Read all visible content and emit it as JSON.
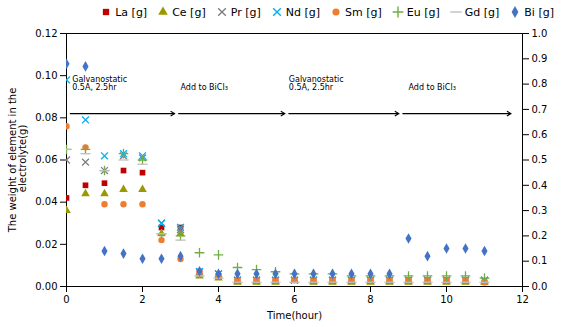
{
  "chart_data": {
    "type": "scatter",
    "xlabel": "Time(hour)",
    "ylabel": "The weight of element in the\n electrolyte(g)",
    "xlim": [
      0,
      12
    ],
    "xticks": [
      0,
      2,
      4,
      6,
      8,
      10,
      12
    ],
    "ylim": [
      0,
      0.12
    ],
    "yticks": [
      {
        "value": 0,
        "label": "0.00"
      },
      {
        "value": 0.02,
        "label": "0.02"
      },
      {
        "value": 0.04,
        "label": "0.04"
      },
      {
        "value": 0.06,
        "label": "0.06"
      },
      {
        "value": 0.08,
        "label": "0.08"
      },
      {
        "value": 0.1,
        "label": "0.10"
      },
      {
        "value": 0.12,
        "label": "0.12"
      }
    ],
    "y2lim": [
      0,
      1
    ],
    "y2ticks": [
      {
        "value": 0,
        "label": "0.0"
      },
      {
        "value": 0.1,
        "label": "0.1"
      },
      {
        "value": 0.2,
        "label": "0.2"
      },
      {
        "value": 0.3,
        "label": "0.3"
      },
      {
        "value": 0.4,
        "label": "0.4"
      },
      {
        "value": 0.5,
        "label": "0.5"
      },
      {
        "value": 0.6,
        "label": "0.6"
      },
      {
        "value": 0.7,
        "label": "0.7"
      },
      {
        "value": 0.8,
        "label": "0.8"
      },
      {
        "value": 0.9,
        "label": "0.9"
      },
      {
        "value": 1.0,
        "label": "1.0"
      }
    ],
    "grid": false,
    "legend": "upper right",
    "annotations": [
      {
        "text": "Galvanostatic\n0.5A, 2.5hr",
        "x": 0.15,
        "y": 0.093
      },
      {
        "text": "Add to BiCl₃",
        "x": 3.0,
        "y": 0.093
      },
      {
        "text": "Galvanostatic\n0.5A, 2.5hr",
        "x": 5.85,
        "y": 0.093
      },
      {
        "text": "Add to BiCl₃",
        "x": 9.0,
        "y": 0.093
      }
    ],
    "arrows": [
      {
        "x_start": 0.1,
        "x_end": 2.85,
        "y": 0.082
      },
      {
        "x_start": 2.95,
        "x_end": 5.75,
        "y": 0.082
      },
      {
        "x_start": 5.85,
        "x_end": 8.75,
        "y": 0.082
      },
      {
        "x_start": 8.85,
        "x_end": 11.7,
        "y": 0.082
      }
    ],
    "series": [
      {
        "name": "La [g]",
        "color": "#c00000",
        "marker": "square",
        "x": [
          0,
          0.5,
          1,
          1.5,
          2,
          2.5,
          3,
          3.5,
          4,
          4.5,
          5,
          5.5,
          6,
          6.5,
          7,
          7.5,
          8,
          8.5,
          9,
          9.5,
          10,
          10.5,
          11
        ],
        "values": [
          0.042,
          0.048,
          0.049,
          0.055,
          0.054,
          0.028,
          0.028,
          0.007,
          0.005,
          0.003,
          0.003,
          0.003,
          0.003,
          0.003,
          0.003,
          0.003,
          0.003,
          0.003,
          0.003,
          0.003,
          0.003,
          0.003,
          0.002
        ]
      },
      {
        "name": "Ce [g]",
        "color": "#9a9a00",
        "marker": "triangle",
        "x": [
          0,
          0.5,
          1,
          1.5,
          2,
          2.5,
          3,
          3.5,
          4,
          4.5,
          5,
          5.5,
          6,
          6.5,
          7,
          7.5,
          8,
          8.5,
          9,
          9.5,
          10,
          10.5,
          11
        ],
        "values": [
          0.036,
          0.044,
          0.044,
          0.046,
          0.046,
          0.025,
          0.025,
          0.005,
          0.004,
          0.002,
          0.002,
          0.002,
          0.003,
          0.002,
          0.002,
          0.002,
          0.002,
          0.002,
          0.002,
          0.002,
          0.002,
          0.002,
          0.002
        ]
      },
      {
        "name": "Pr [g]",
        "color": "#808080",
        "marker": "times",
        "x": [
          0,
          0.5,
          1,
          1.5,
          2,
          2.5,
          3,
          3.5,
          4,
          4.5,
          5,
          5.5,
          6,
          6.5,
          7,
          7.5,
          8,
          8.5,
          9,
          9.5,
          10,
          10.5,
          11
        ],
        "values": [
          0.06,
          0.059,
          0.055,
          0.062,
          0.061,
          0.03,
          0.027,
          0.007,
          0.006,
          0.003,
          0.003,
          0.003,
          0.003,
          0.003,
          0.003,
          0.003,
          0.003,
          0.003,
          0.003,
          0.003,
          0.003,
          0.003,
          0.003
        ]
      },
      {
        "name": "Nd [g]",
        "color": "#00b0f0",
        "marker": "times",
        "x": [
          0,
          0.5,
          1,
          1.5,
          2,
          2.5,
          3,
          3.5,
          4,
          4.5,
          5,
          5.5,
          6,
          6.5,
          7,
          7.5,
          8,
          8.5,
          9,
          9.5,
          10,
          10.5,
          11
        ],
        "values": [
          0.098,
          0.079,
          0.062,
          0.063,
          0.062,
          0.03,
          0.028,
          0.007,
          0.006,
          0.003,
          0.003,
          0.003,
          0.003,
          0.003,
          0.003,
          0.003,
          0.003,
          0.003,
          0.003,
          0.003,
          0.003,
          0.003,
          0.003
        ]
      },
      {
        "name": "Sm [g]",
        "color": "#ed7d31",
        "marker": "circle",
        "x": [
          0,
          0.5,
          1,
          1.5,
          2,
          2.5,
          3,
          3.5,
          4,
          4.5,
          5,
          5.5,
          6,
          6.5,
          7,
          7.5,
          8,
          8.5,
          9,
          9.5,
          10,
          10.5,
          11
        ],
        "values": [
          0.076,
          0.066,
          0.039,
          0.039,
          0.039,
          0.022,
          0.013,
          0.006,
          0.005,
          0.003,
          0.003,
          0.003,
          0.003,
          0.003,
          0.003,
          0.003,
          0.003,
          0.003,
          0.003,
          0.003,
          0.003,
          0.003,
          0.002
        ]
      },
      {
        "name": "Eu [g]",
        "color": "#70ad47",
        "marker": "plus",
        "x": [
          0,
          0.5,
          1,
          1.5,
          2,
          2.5,
          3,
          3.5,
          4,
          4.5,
          5,
          5.5,
          6,
          6.5,
          7,
          7.5,
          8,
          8.5,
          9,
          9.5,
          10,
          10.5,
          11
        ],
        "values": [
          0.065,
          0.065,
          0.055,
          0.063,
          0.06,
          0.025,
          0.024,
          0.016,
          0.015,
          0.009,
          0.008,
          0.007,
          0.006,
          0.006,
          0.006,
          0.005,
          0.005,
          0.005,
          0.005,
          0.005,
          0.005,
          0.005,
          0.004
        ]
      },
      {
        "name": "Gd [g]",
        "color": "#bfbfbf",
        "marker": "hline",
        "x": [
          0,
          0.5,
          1,
          1.5,
          2,
          2.5,
          3,
          3.5,
          4,
          4.5,
          5,
          5.5,
          6,
          6.5,
          7,
          7.5,
          8,
          8.5,
          9,
          9.5,
          10,
          10.5,
          11
        ],
        "values": [
          0.065,
          0.063,
          0.055,
          0.06,
          0.058,
          0.025,
          0.022,
          0.005,
          0.004,
          0.002,
          0.002,
          0.002,
          0.002,
          0.002,
          0.002,
          0.002,
          0.002,
          0.002,
          0.002,
          0.002,
          0.002,
          0.002,
          0.002
        ]
      },
      {
        "name": "Bi [g]",
        "color": "#4472c4",
        "marker": "diamond",
        "axis": "y2",
        "x": [
          0,
          0.5,
          1,
          1.5,
          2,
          2.5,
          3,
          3.5,
          4,
          4.5,
          5,
          5.5,
          6,
          6.5,
          7,
          7.5,
          8,
          8.5,
          9,
          9.5,
          10,
          10.5,
          11
        ],
        "values": [
          0.88,
          0.87,
          0.14,
          0.13,
          0.11,
          0.11,
          0.12,
          0.06,
          0.05,
          0.05,
          0.05,
          0.05,
          0.05,
          0.05,
          0.05,
          0.05,
          0.05,
          0.05,
          0.19,
          0.12,
          0.15,
          0.15,
          0.14
        ]
      }
    ]
  }
}
